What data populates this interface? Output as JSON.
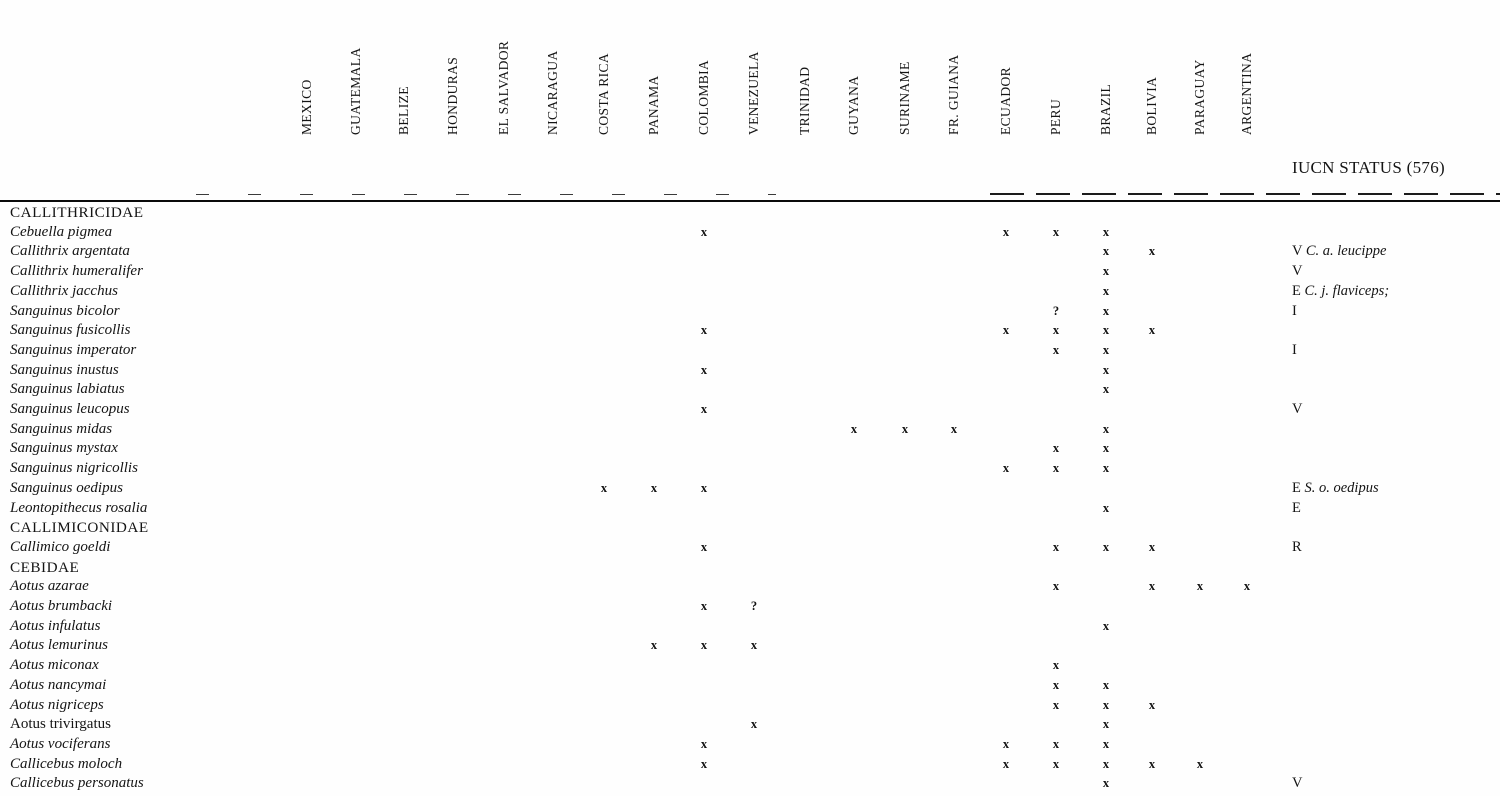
{
  "colors": {
    "ink": "#141414",
    "paper": "#fefefe"
  },
  "header": {
    "countries": [
      "MEXICO",
      "GUATEMALA",
      "BELIZE",
      "HONDURAS",
      "EL SALVADOR",
      "NICARAGUA",
      "COSTA RICA",
      "PANAMA",
      "COLOMBIA",
      "VENEZUELA",
      "TRINIDAD",
      "GUYANA",
      "SURINAME",
      "FR. GUIANA",
      "ECUADOR",
      "PERU",
      "BRAZIL",
      "BOLIVIA",
      "PARAGUAY",
      "ARGENTINA"
    ],
    "iucn_label": "IUCN STATUS (576)"
  },
  "table": {
    "rows": [
      {
        "name": "CALLITHRICIDAE",
        "rank": "family",
        "marks": []
      },
      {
        "name": "Cebuella pigmea",
        "rank": "species",
        "marks": [
          {
            "col": 8,
            "sym": "x"
          },
          {
            "col": 14,
            "sym": "x"
          },
          {
            "col": 15,
            "sym": "x"
          },
          {
            "col": 16,
            "sym": "x"
          }
        ]
      },
      {
        "name": "Callithrix argentata",
        "rank": "species",
        "marks": [
          {
            "col": 16,
            "sym": "x"
          },
          {
            "col": 17,
            "sym": "x"
          }
        ],
        "status": {
          "code": "V",
          "note": "C. a. leucippe"
        }
      },
      {
        "name": "Callithrix humeralifer",
        "rank": "species",
        "marks": [
          {
            "col": 16,
            "sym": "x"
          }
        ],
        "status": {
          "code": "V"
        }
      },
      {
        "name": "Callithrix jacchus",
        "rank": "species",
        "marks": [
          {
            "col": 16,
            "sym": "x"
          }
        ],
        "status": {
          "code": "E",
          "note": "C. j. flaviceps;"
        }
      },
      {
        "name": "Sanguinus bicolor",
        "rank": "species",
        "marks": [
          {
            "col": 15,
            "sym": "?"
          },
          {
            "col": 16,
            "sym": "x"
          }
        ],
        "status": {
          "code": "I"
        }
      },
      {
        "name": "Sanguinus fusicollis",
        "rank": "species",
        "marks": [
          {
            "col": 8,
            "sym": "x"
          },
          {
            "col": 14,
            "sym": "x"
          },
          {
            "col": 15,
            "sym": "x"
          },
          {
            "col": 16,
            "sym": "x"
          },
          {
            "col": 17,
            "sym": "x"
          }
        ]
      },
      {
        "name": "Sanguinus imperator",
        "rank": "species",
        "marks": [
          {
            "col": 15,
            "sym": "x"
          },
          {
            "col": 16,
            "sym": "x"
          }
        ],
        "status": {
          "code": "I"
        }
      },
      {
        "name": "Sanguinus inustus",
        "rank": "species",
        "marks": [
          {
            "col": 8,
            "sym": "x"
          },
          {
            "col": 16,
            "sym": "x"
          }
        ]
      },
      {
        "name": "Sanguinus labiatus",
        "rank": "species",
        "marks": [
          {
            "col": 16,
            "sym": "x"
          }
        ]
      },
      {
        "name": "Sanguinus leucopus",
        "rank": "species",
        "marks": [
          {
            "col": 8,
            "sym": "x"
          }
        ],
        "status": {
          "code": "V"
        }
      },
      {
        "name": "Sanguinus midas",
        "rank": "species",
        "marks": [
          {
            "col": 11,
            "sym": "x"
          },
          {
            "col": 12,
            "sym": "x"
          },
          {
            "col": 13,
            "sym": "x"
          },
          {
            "col": 16,
            "sym": "x"
          }
        ]
      },
      {
        "name": "Sanguinus mystax",
        "rank": "species",
        "marks": [
          {
            "col": 15,
            "sym": "x"
          },
          {
            "col": 16,
            "sym": "x"
          }
        ]
      },
      {
        "name": "Sanguinus nigricollis",
        "rank": "species",
        "marks": [
          {
            "col": 14,
            "sym": "x"
          },
          {
            "col": 15,
            "sym": "x"
          },
          {
            "col": 16,
            "sym": "x"
          }
        ]
      },
      {
        "name": "Sanguinus oedipus",
        "rank": "species",
        "marks": [
          {
            "col": 6,
            "sym": "x"
          },
          {
            "col": 7,
            "sym": "x"
          },
          {
            "col": 8,
            "sym": "x"
          }
        ],
        "status": {
          "code": "E",
          "note": "S. o. oedipus"
        }
      },
      {
        "name": "Leontopithecus rosalia",
        "rank": "species",
        "marks": [
          {
            "col": 16,
            "sym": "x"
          }
        ],
        "status": {
          "code": "E"
        }
      },
      {
        "name": "CALLIMICONIDAE",
        "rank": "family",
        "marks": []
      },
      {
        "name": "Callimico goeldi",
        "rank": "species",
        "marks": [
          {
            "col": 8,
            "sym": "x"
          },
          {
            "col": 15,
            "sym": "x"
          },
          {
            "col": 16,
            "sym": "x"
          },
          {
            "col": 17,
            "sym": "x"
          }
        ],
        "status": {
          "code": "R"
        }
      },
      {
        "name": "CEBIDAE",
        "rank": "family",
        "marks": []
      },
      {
        "name": "Aotus azarae",
        "rank": "species",
        "marks": [
          {
            "col": 15,
            "sym": "x"
          },
          {
            "col": 17,
            "sym": "x"
          },
          {
            "col": 18,
            "sym": "x"
          },
          {
            "col": 19,
            "sym": "x"
          }
        ]
      },
      {
        "name": "Aotus brumbacki",
        "rank": "species",
        "marks": [
          {
            "col": 8,
            "sym": "x"
          },
          {
            "col": 9,
            "sym": "?"
          }
        ]
      },
      {
        "name": "Aotus infulatus",
        "rank": "species",
        "marks": [
          {
            "col": 16,
            "sym": "x"
          }
        ]
      },
      {
        "name": "Aotus lemurinus",
        "rank": "species",
        "marks": [
          {
            "col": 7,
            "sym": "x"
          },
          {
            "col": 8,
            "sym": "x"
          },
          {
            "col": 9,
            "sym": "x"
          }
        ]
      },
      {
        "name": "Aotus miconax",
        "rank": "species",
        "marks": [
          {
            "col": 15,
            "sym": "x"
          }
        ]
      },
      {
        "name": "Aotus nancymai",
        "rank": "species",
        "marks": [
          {
            "col": 15,
            "sym": "x"
          },
          {
            "col": 16,
            "sym": "x"
          }
        ]
      },
      {
        "name": "Aotus nigriceps",
        "rank": "species",
        "marks": [
          {
            "col": 15,
            "sym": "x"
          },
          {
            "col": 16,
            "sym": "x"
          },
          {
            "col": 17,
            "sym": "x"
          }
        ]
      },
      {
        "name": "Aotus trivirgatus",
        "rank": "species",
        "upright": true,
        "marks": [
          {
            "col": 9,
            "sym": "x"
          },
          {
            "col": 16,
            "sym": "x"
          }
        ]
      },
      {
        "name": "Aotus vociferans",
        "rank": "species",
        "marks": [
          {
            "col": 8,
            "sym": "x"
          },
          {
            "col": 14,
            "sym": "x"
          },
          {
            "col": 15,
            "sym": "x"
          },
          {
            "col": 16,
            "sym": "x"
          }
        ]
      },
      {
        "name": "Callicebus moloch",
        "rank": "species",
        "marks": [
          {
            "col": 8,
            "sym": "x"
          },
          {
            "col": 14,
            "sym": "x"
          },
          {
            "col": 15,
            "sym": "x"
          },
          {
            "col": 16,
            "sym": "x"
          },
          {
            "col": 17,
            "sym": "x"
          },
          {
            "col": 18,
            "sym": "x"
          }
        ]
      },
      {
        "name": "Callicebus personatus",
        "rank": "species",
        "marks": [
          {
            "col": 16,
            "sym": "x"
          }
        ],
        "status": {
          "code": "V"
        }
      }
    ]
  }
}
